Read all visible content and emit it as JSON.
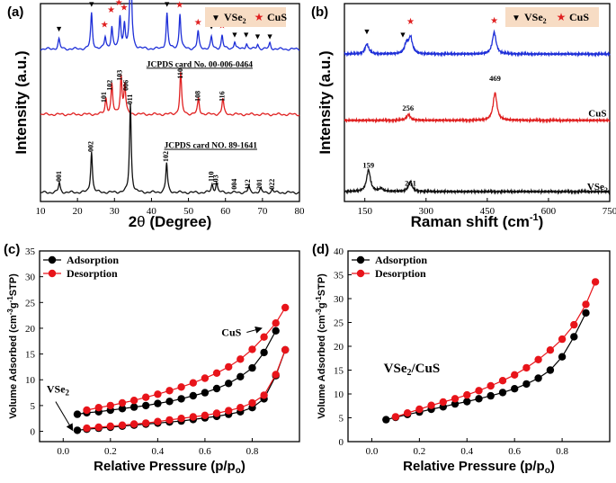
{
  "chart_data": [
    {
      "id": "a",
      "type": "line",
      "panel_label": "(a)",
      "xlabel_pre": "2",
      "xlabel_theta": "θ",
      "xlabel_post": " (Degree)",
      "ylabel": "Intensity (a.u.)",
      "xlim": [
        10,
        80
      ],
      "xticks": [
        "10",
        "20",
        "30",
        "40",
        "50",
        "60",
        "70",
        "80"
      ],
      "legend": [
        {
          "symbol": "▼",
          "label": "VSe",
          "sub": "2",
          "color": "#000000"
        },
        {
          "symbol": "★",
          "label": "CuS",
          "sub": "",
          "color": "#e02020"
        }
      ],
      "legend_bg": "#f7dcc4",
      "series": [
        {
          "name": "VSe2/CuS",
          "color": "#1e2fd8",
          "baseline_frac": 0.77,
          "peaks": [
            [
              15,
              0.05
            ],
            [
              23.8,
              0.18
            ],
            [
              27.5,
              0.06
            ],
            [
              29.3,
              0.11
            ],
            [
              31.5,
              0.16
            ],
            [
              32.7,
              0.12
            ],
            [
              34.4,
              0.52
            ],
            [
              44.2,
              0.18
            ],
            [
              47.7,
              0.18
            ],
            [
              52.6,
              0.09
            ],
            [
              56.2,
              0.06
            ],
            [
              59.1,
              0.07
            ],
            [
              62.5,
              0.04
            ],
            [
              65.7,
              0.03
            ],
            [
              68.7,
              0.025
            ],
            [
              72,
              0.03
            ]
          ]
        },
        {
          "name": "CuS",
          "color": "#e02020",
          "baseline_frac": 0.44,
          "peaks": [
            [
              27.7,
              0.08
            ],
            [
              29.3,
              0.15
            ],
            [
              31.8,
              0.19
            ],
            [
              32.8,
              0.15
            ],
            [
              47.9,
              0.21
            ],
            [
              52.7,
              0.08
            ],
            [
              59.3,
              0.08
            ]
          ]
        },
        {
          "name": "VSe2",
          "color": "#111111",
          "baseline_frac": 0.045,
          "peaks": [
            [
              15.1,
              0.05
            ],
            [
              23.8,
              0.21
            ],
            [
              34.3,
              0.45
            ],
            [
              44.1,
              0.15
            ],
            [
              56.4,
              0.04
            ],
            [
              57.6,
              0.05
            ],
            [
              66.3,
              0.03
            ],
            [
              69.5,
              0.02
            ],
            [
              72.7,
              0.015
            ]
          ]
        }
      ],
      "markers": [
        {
          "x": 15,
          "y_frac": 0.86,
          "sym": "▼",
          "color": "#000000"
        },
        {
          "x": 23.8,
          "y_frac": 0.985,
          "sym": "▼",
          "color": "#000000"
        },
        {
          "x": 27.3,
          "y_frac": 0.88,
          "sym": "★",
          "color": "#e02020"
        },
        {
          "x": 29.1,
          "y_frac": 0.955,
          "sym": "★",
          "color": "#e02020"
        },
        {
          "x": 31.2,
          "y_frac": 0.99,
          "sym": "★",
          "color": "#e02020"
        },
        {
          "x": 32.6,
          "y_frac": 0.965,
          "sym": "★",
          "color": "#e02020"
        },
        {
          "x": 34.4,
          "y_frac": 1.34,
          "sym": "▼",
          "color": "#000000"
        },
        {
          "x": 44.2,
          "y_frac": 0.985,
          "sym": "▼",
          "color": "#000000"
        },
        {
          "x": 47.6,
          "y_frac": 0.98,
          "sym": "★",
          "color": "#e02020"
        },
        {
          "x": 52.6,
          "y_frac": 0.89,
          "sym": "★",
          "color": "#e02020"
        },
        {
          "x": 56.2,
          "y_frac": 0.87,
          "sym": "▼",
          "color": "#000000"
        },
        {
          "x": 59.1,
          "y_frac": 0.875,
          "sym": "★",
          "color": "#e02020"
        },
        {
          "x": 62.5,
          "y_frac": 0.83,
          "sym": "▼",
          "color": "#000000"
        },
        {
          "x": 65.6,
          "y_frac": 0.83,
          "sym": "▼",
          "color": "#000000"
        },
        {
          "x": 68.7,
          "y_frac": 0.82,
          "sym": "▼",
          "color": "#000000"
        },
        {
          "x": 72.0,
          "y_frac": 0.82,
          "sym": "▼",
          "color": "#000000"
        }
      ],
      "ref_labels": [
        {
          "text": "JCPDS card No. 00-006-0464",
          "x": 53,
          "y_frac": 0.68
        },
        {
          "text": "JCPDS card NO. 89-1641",
          "x": 56,
          "y_frac": 0.27
        }
      ],
      "hkl_labels": [
        {
          "text": "101",
          "x": 27.3,
          "y_frac": 0.5
        },
        {
          "text": "102",
          "x": 28.9,
          "y_frac": 0.56
        },
        {
          "text": "103",
          "x": 31.6,
          "y_frac": 0.61
        },
        {
          "text": "006",
          "x": 33.2,
          "y_frac": 0.56
        },
        {
          "text": "110",
          "x": 47.9,
          "y_frac": 0.62
        },
        {
          "text": "108",
          "x": 52.7,
          "y_frac": 0.505
        },
        {
          "text": "116",
          "x": 59.3,
          "y_frac": 0.505
        },
        {
          "text": "001",
          "x": 15.1,
          "y_frac": 0.1
        },
        {
          "text": "002",
          "x": 23.8,
          "y_frac": 0.25
        },
        {
          "text": "011",
          "x": 34.3,
          "y_frac": 0.49
        },
        {
          "text": "102",
          "x": 44.1,
          "y_frac": 0.2
        },
        {
          "text": "110",
          "x": 56.3,
          "y_frac": 0.1
        },
        {
          "text": "103",
          "x": 57.6,
          "y_frac": 0.08
        },
        {
          "text": "004",
          "x": 62.6,
          "y_frac": 0.06
        },
        {
          "text": "112",
          "x": 66.2,
          "y_frac": 0.06
        },
        {
          "text": "201",
          "x": 69.4,
          "y_frac": 0.06
        },
        {
          "text": "022",
          "x": 72.8,
          "y_frac": 0.06
        }
      ]
    },
    {
      "id": "b",
      "type": "line",
      "panel_label": "(b)",
      "xlabel": "Raman shift (cm",
      "xlabel_sup": "-1",
      "xlabel_close": ")",
      "ylabel": "Intensity (a.u.)",
      "xlim": [
        100,
        750
      ],
      "xticks": [
        "150",
        "300",
        "450",
        "600",
        "750"
      ],
      "legend": [
        {
          "symbol": "▼",
          "label": "VSe",
          "sub": "2",
          "color": "#000000"
        },
        {
          "symbol": "★",
          "label": "CuS",
          "sub": "",
          "color": "#e02020"
        }
      ],
      "legend_bg": "#f7dcc4",
      "series": [
        {
          "name": "VSe2/CuS",
          "color": "#1e2fd8",
          "baseline_frac": 0.745,
          "peaks": [
            [
              155,
              0.05
            ],
            [
              252,
              0.05
            ],
            [
              262,
              0.08
            ],
            [
              467,
              0.11
            ]
          ]
        },
        {
          "name": "CuS",
          "color": "#e02020",
          "baseline_frac": 0.41,
          "peaks": [
            [
              257,
              0.03
            ],
            [
              469,
              0.14
            ]
          ]
        },
        {
          "name": "VSe2",
          "color": "#111111",
          "baseline_frac": 0.05,
          "peaks": [
            [
              159,
              0.11
            ],
            [
              190,
              0.015
            ],
            [
              261,
              0.05
            ]
          ]
        }
      ],
      "markers": [
        {
          "x": 155,
          "y_frac": 0.845,
          "sym": "▼",
          "color": "#000000"
        },
        {
          "x": 243,
          "y_frac": 0.83,
          "sym": "▼",
          "color": "#000000"
        },
        {
          "x": 262,
          "y_frac": 0.895,
          "sym": "★",
          "color": "#e02020"
        },
        {
          "x": 467,
          "y_frac": 0.9,
          "sym": "★",
          "color": "#e02020"
        }
      ],
      "peak_labels": [
        {
          "text": "256",
          "x": 256,
          "y_frac": 0.46
        },
        {
          "text": "469",
          "x": 469,
          "y_frac": 0.61
        },
        {
          "text": "159",
          "x": 159,
          "y_frac": 0.17
        },
        {
          "text": "261",
          "x": 262,
          "y_frac": 0.08
        }
      ],
      "series_labels": [
        {
          "text": "CuS",
          "sub": "",
          "x": 720,
          "y_frac": 0.43
        },
        {
          "text": "VSe",
          "sub": "2",
          "x": 720,
          "y_frac": 0.06
        }
      ]
    },
    {
      "id": "c",
      "type": "line",
      "panel_label": "(c)",
      "xlabel": "Relative Pressure (p/p",
      "xlabel_sub": "o",
      "xlabel_close": ")",
      "ylabel": "Volume Adsorbed (cm",
      "ylabel_sup": "-3",
      "ylabel_mid": "g",
      "ylabel_sup2": "-1",
      "ylabel_end": "STP)",
      "xlim": [
        -0.1,
        1.0
      ],
      "ylim": [
        -2,
        35
      ],
      "xticks": [
        0.0,
        0.2,
        0.4,
        0.6,
        0.8
      ],
      "xtick_labels": [
        "0.0",
        "0.2",
        "0.4",
        "0.6",
        "0.8"
      ],
      "yticks": [
        0,
        5,
        10,
        15,
        20,
        25,
        30,
        35
      ],
      "ytick_labels": [
        "0",
        "5",
        "10",
        "15",
        "20",
        "25",
        "30",
        "35"
      ],
      "legend": [
        {
          "label": "Adsorption",
          "color": "#000000"
        },
        {
          "label": "Desorption",
          "color": "#e8141a"
        }
      ],
      "series": [
        {
          "name": "CuS Adsorption",
          "color": "#000000",
          "x": [
            0.06,
            0.1,
            0.15,
            0.2,
            0.25,
            0.3,
            0.35,
            0.4,
            0.45,
            0.5,
            0.55,
            0.6,
            0.65,
            0.7,
            0.75,
            0.8,
            0.85,
            0.9
          ],
          "y": [
            3.3,
            3.6,
            3.8,
            4.1,
            4.4,
            4.7,
            5.0,
            5.4,
            5.8,
            6.3,
            6.9,
            7.5,
            8.3,
            9.3,
            10.6,
            12.3,
            15.3,
            19.5
          ]
        },
        {
          "name": "CuS Desorption",
          "color": "#e8141a",
          "x": [
            0.94,
            0.9,
            0.85,
            0.8,
            0.75,
            0.7,
            0.65,
            0.6,
            0.55,
            0.5,
            0.45,
            0.4,
            0.35,
            0.3,
            0.25,
            0.2,
            0.15,
            0.1
          ],
          "y": [
            24.0,
            21.0,
            18.3,
            15.9,
            14.0,
            12.5,
            11.3,
            10.3,
            9.4,
            8.6,
            7.9,
            7.2,
            6.6,
            6.0,
            5.5,
            5.0,
            4.6,
            4.1
          ]
        },
        {
          "name": "VSe2 Adsorption",
          "color": "#000000",
          "x": [
            0.06,
            0.1,
            0.15,
            0.2,
            0.25,
            0.3,
            0.35,
            0.4,
            0.45,
            0.5,
            0.55,
            0.6,
            0.65,
            0.7,
            0.75,
            0.8,
            0.85,
            0.9,
            0.94
          ],
          "y": [
            0.2,
            0.4,
            0.6,
            0.8,
            1.0,
            1.2,
            1.4,
            1.6,
            1.8,
            2.0,
            2.3,
            2.6,
            2.9,
            3.3,
            3.8,
            4.6,
            6.3,
            10.8,
            15.8
          ]
        },
        {
          "name": "VSe2 Desorption",
          "color": "#e8141a",
          "x": [
            0.94,
            0.9,
            0.85,
            0.8,
            0.75,
            0.7,
            0.65,
            0.6,
            0.55,
            0.5,
            0.45,
            0.4,
            0.35,
            0.3,
            0.25,
            0.2,
            0.15,
            0.1
          ],
          "y": [
            15.8,
            11.0,
            7.0,
            5.5,
            4.6,
            4.0,
            3.5,
            3.1,
            2.8,
            2.5,
            2.2,
            1.9,
            1.6,
            1.4,
            1.2,
            1.0,
            0.8,
            0.6
          ]
        }
      ],
      "annotations": [
        {
          "text": "CuS",
          "sub": "",
          "x": 0.67,
          "y": 18.5,
          "arrow_to": [
            0.84,
            20.0
          ]
        },
        {
          "text": "VSe",
          "sub": "2",
          "x": -0.07,
          "y": 7.5,
          "arrow_to": [
            0.04,
            0.2
          ]
        }
      ]
    },
    {
      "id": "d",
      "type": "line",
      "panel_label": "(d)",
      "xlabel": "Relative Pressure (p/p",
      "xlabel_sub": "o",
      "xlabel_close": ")",
      "ylabel": "Volume Adsorbed (cm",
      "ylabel_sup": "-3",
      "ylabel_mid": "g",
      "ylabel_sup2": "-1",
      "ylabel_end": "STP)",
      "xlim": [
        -0.1,
        1.0
      ],
      "ylim": [
        0,
        40
      ],
      "xticks": [
        0.0,
        0.2,
        0.4,
        0.6,
        0.8
      ],
      "xtick_labels": [
        "0.0",
        "0.2",
        "0.4",
        "0.6",
        "0.8"
      ],
      "yticks": [
        0,
        5,
        10,
        15,
        20,
        25,
        30,
        35,
        40
      ],
      "ytick_labels": [
        "0",
        "5",
        "10",
        "15",
        "20",
        "25",
        "30",
        "35",
        "40"
      ],
      "legend": [
        {
          "label": "Adsorption",
          "color": "#000000"
        },
        {
          "label": "Desorption",
          "color": "#e8141a"
        }
      ],
      "series": [
        {
          "name": "VSe2/CuS Adsorption",
          "color": "#000000",
          "x": [
            0.06,
            0.1,
            0.15,
            0.2,
            0.25,
            0.3,
            0.35,
            0.4,
            0.45,
            0.5,
            0.55,
            0.6,
            0.65,
            0.7,
            0.75,
            0.8,
            0.85,
            0.9
          ],
          "y": [
            4.6,
            5.1,
            5.7,
            6.2,
            6.8,
            7.3,
            7.9,
            8.4,
            9.0,
            9.6,
            10.3,
            11.1,
            12.1,
            13.3,
            15.0,
            17.8,
            22.0,
            27.0
          ]
        },
        {
          "name": "VSe2/CuS Desorption",
          "color": "#e8141a",
          "x": [
            0.94,
            0.9,
            0.85,
            0.8,
            0.75,
            0.7,
            0.65,
            0.6,
            0.55,
            0.5,
            0.45,
            0.4,
            0.35,
            0.3,
            0.25,
            0.2,
            0.15,
            0.1
          ],
          "y": [
            33.5,
            28.8,
            24.5,
            21.5,
            19.2,
            17.2,
            15.5,
            14.0,
            12.8,
            11.7,
            10.7,
            9.8,
            9.0,
            8.3,
            7.6,
            6.8,
            6.0,
            5.2
          ]
        }
      ],
      "annotations": [
        {
          "text": "VSe",
          "sub": "2",
          "suffix": "/CuS",
          "x": 0.05,
          "y": 14.5
        }
      ]
    }
  ]
}
